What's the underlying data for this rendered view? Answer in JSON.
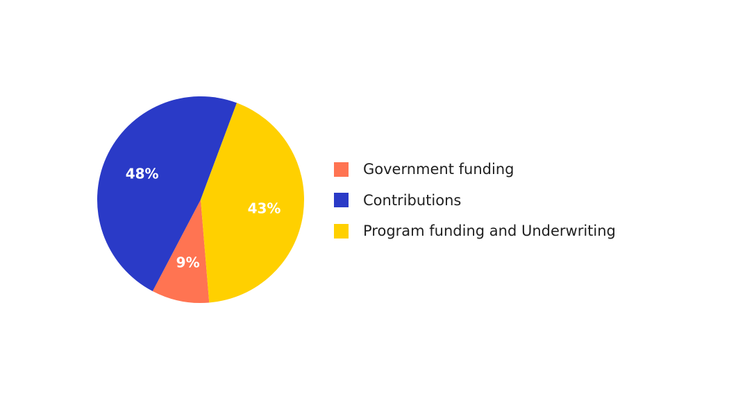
{
  "chart_data": {
    "type": "pie",
    "slices": [
      {
        "label": "Government funding",
        "value": 9,
        "display": "9%",
        "color": "#FF7452"
      },
      {
        "label": "Contributions",
        "value": 48,
        "display": "48%",
        "color": "#2A3AC7"
      },
      {
        "label": "Program funding and Underwriting",
        "value": 43,
        "display": "43%",
        "color": "#FFD000"
      }
    ],
    "legend_position": "right"
  }
}
